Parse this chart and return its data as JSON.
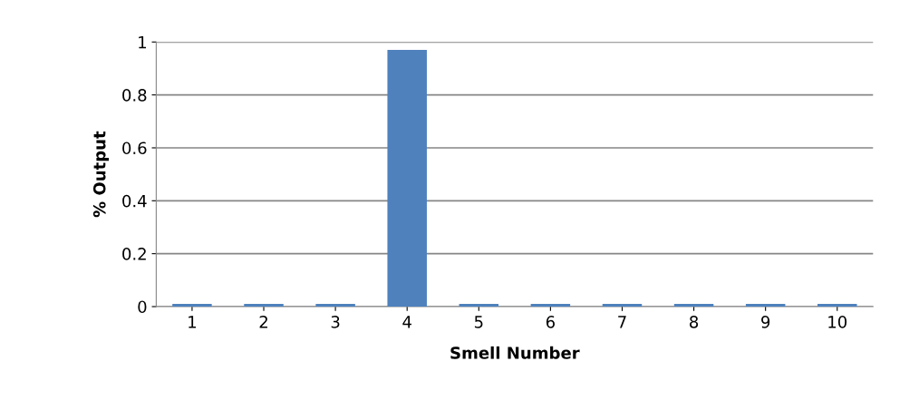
{
  "chart_data": {
    "type": "bar",
    "xlabel": "Smell Number",
    "ylabel": "% Output",
    "categories": [
      "1",
      "2",
      "3",
      "4",
      "5",
      "6",
      "7",
      "8",
      "9",
      "10"
    ],
    "values": [
      0.01,
      0.01,
      0.01,
      0.97,
      0.01,
      0.01,
      0.01,
      0.01,
      0.01,
      0.01
    ],
    "color": "#4f81bd",
    "ylim": [
      0,
      1
    ],
    "yticks": [
      0,
      0.2,
      0.4,
      0.6,
      0.8,
      1
    ],
    "grid": "y",
    "legend": false
  }
}
